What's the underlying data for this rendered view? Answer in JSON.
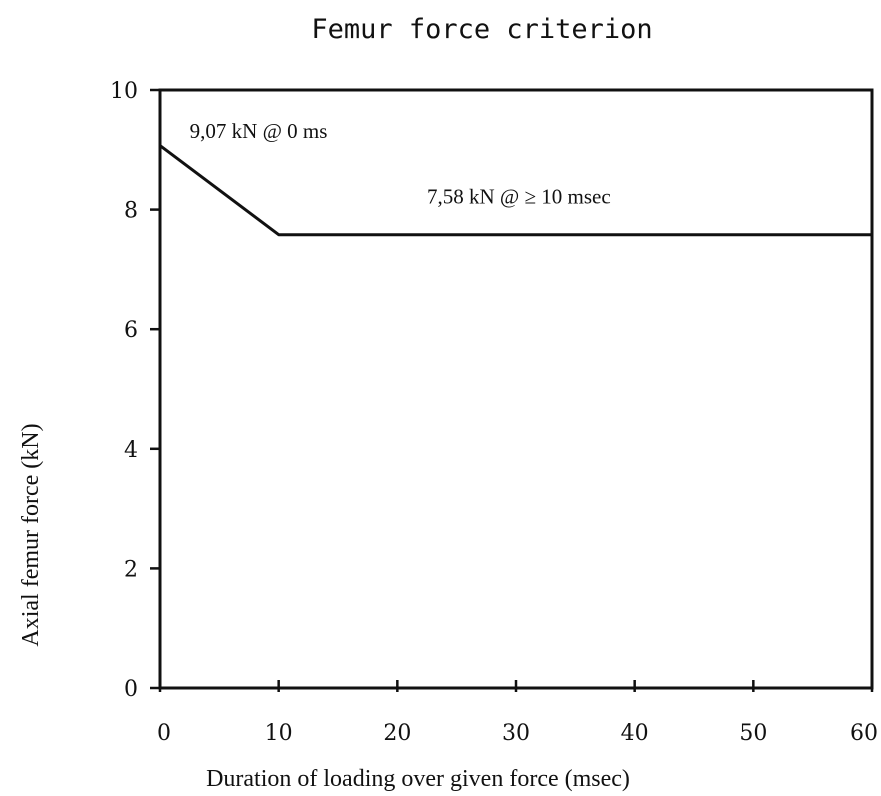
{
  "chart_data": {
    "type": "line",
    "title": "Femur force criterion",
    "xlabel": "Duration of loading over given force (msec)",
    "ylabel": "Axial femur force (kN)",
    "xlim": [
      0,
      60
    ],
    "ylim": [
      0,
      10
    ],
    "xticks": [
      "0",
      "10",
      "20",
      "30",
      "40",
      "50",
      "60"
    ],
    "yticks": [
      "0",
      "2",
      "4",
      "6",
      "8",
      "10"
    ],
    "grid": false,
    "series": [
      {
        "x": [
          0,
          10,
          60
        ],
        "y": [
          9.07,
          7.58,
          7.58
        ]
      }
    ],
    "annotations": [
      {
        "text": "9,07 kN @ 0 ms",
        "x": 2.5,
        "y": 9.2
      },
      {
        "text": "7,58 kN @ ≥ 10 msec",
        "x": 22.5,
        "y": 8.1
      }
    ]
  }
}
